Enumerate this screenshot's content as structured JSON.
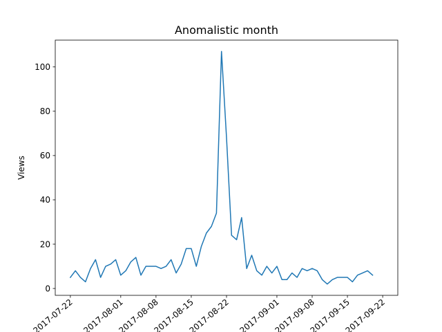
{
  "chart_data": {
    "type": "line",
    "title": "Anomalistic month",
    "xlabel": "",
    "ylabel": "Views",
    "x_type": "date",
    "xlim": [
      "2017-07-19",
      "2017-09-25"
    ],
    "ylim": [
      -3.1,
      112.1
    ],
    "grid": false,
    "x_ticks": [
      "2017-07-22",
      "2017-08-01",
      "2017-08-08",
      "2017-08-15",
      "2017-08-22",
      "2017-09-01",
      "2017-09-08",
      "2017-09-15",
      "2017-09-22"
    ],
    "x_tick_labels": [
      "2017-07-22",
      "2017-08-01",
      "2017-08-08",
      "2017-08-15",
      "2017-08-22",
      "2017-09-01",
      "2017-09-08",
      "2017-09-15",
      "2017-09-22"
    ],
    "y_ticks": [
      0,
      20,
      40,
      60,
      80,
      100
    ],
    "y_tick_labels": [
      "0",
      "20",
      "40",
      "60",
      "80",
      "100"
    ],
    "line_color": "#1f77b4",
    "series": [
      {
        "x": [
          "2017-07-22",
          "2017-07-23",
          "2017-07-24",
          "2017-07-25",
          "2017-07-26",
          "2017-07-27",
          "2017-07-28",
          "2017-07-29",
          "2017-07-30",
          "2017-07-31",
          "2017-08-01",
          "2017-08-02",
          "2017-08-03",
          "2017-08-04",
          "2017-08-05",
          "2017-08-06",
          "2017-08-07",
          "2017-08-08",
          "2017-08-09",
          "2017-08-10",
          "2017-08-11",
          "2017-08-12",
          "2017-08-13",
          "2017-08-14",
          "2017-08-15",
          "2017-08-16",
          "2017-08-17",
          "2017-08-18",
          "2017-08-19",
          "2017-08-20",
          "2017-08-21",
          "2017-08-22",
          "2017-08-23",
          "2017-08-24",
          "2017-08-25",
          "2017-08-26",
          "2017-08-27",
          "2017-08-28",
          "2017-08-29",
          "2017-08-30",
          "2017-08-31",
          "2017-09-01",
          "2017-09-02",
          "2017-09-03",
          "2017-09-04",
          "2017-09-05",
          "2017-09-06",
          "2017-09-07",
          "2017-09-08",
          "2017-09-09",
          "2017-09-10",
          "2017-09-11",
          "2017-09-12",
          "2017-09-13",
          "2017-09-14",
          "2017-09-15",
          "2017-09-16",
          "2017-09-17",
          "2017-09-18",
          "2017-09-19",
          "2017-09-20"
        ],
        "y": [
          5,
          8,
          5,
          3,
          9,
          13,
          5,
          10,
          11,
          13,
          6,
          8,
          12,
          14,
          6,
          10,
          10,
          10,
          9,
          10,
          13,
          7,
          11,
          18,
          18,
          10,
          19,
          25,
          28,
          34,
          107,
          68,
          24,
          22,
          32,
          9,
          15,
          8,
          6,
          10,
          7,
          10,
          4,
          4,
          7,
          5,
          9,
          8,
          9,
          8,
          4,
          2,
          4,
          5,
          5,
          5,
          3,
          6,
          7,
          8,
          6
        ]
      }
    ]
  }
}
